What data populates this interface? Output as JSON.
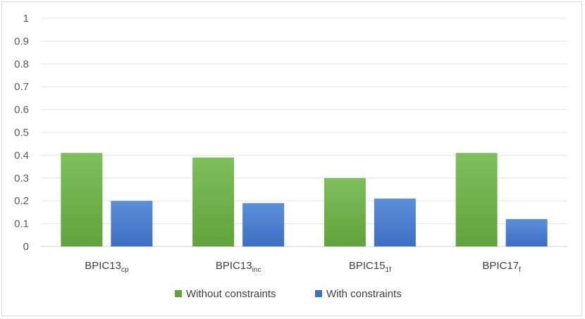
{
  "chart_data": {
    "type": "bar",
    "categories": [
      {
        "base": "BPIC13",
        "sub": "cp"
      },
      {
        "base": "BPIC13",
        "sub": "inc"
      },
      {
        "base": "BPIC15",
        "sub": "1f"
      },
      {
        "base": "BPIC17",
        "sub": "f"
      }
    ],
    "series": [
      {
        "name": "Without constraints",
        "values": [
          0.41,
          0.39,
          0.3,
          0.41
        ],
        "color_top": "#7ebf5c",
        "color_bottom": "#5fa33a"
      },
      {
        "name": "With constraints",
        "values": [
          0.2,
          0.19,
          0.21,
          0.12
        ],
        "color_top": "#5b8fd9",
        "color_bottom": "#3d6fc4"
      }
    ],
    "ylim": [
      0,
      1
    ],
    "yticks": [
      "0",
      "0.1",
      "0.2",
      "0.3",
      "0.4",
      "0.5",
      "0.6",
      "0.7",
      "0.8",
      "0.9",
      "1"
    ],
    "grid": true,
    "legend_position": "bottom"
  }
}
